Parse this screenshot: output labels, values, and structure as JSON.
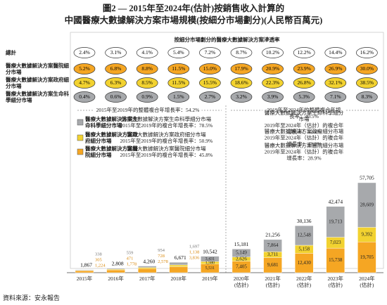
{
  "chart_data": {
    "type": "bar",
    "stacked": true,
    "title": "圖2 — 2015年至2024年(估計)按銷售收入計算的\n中國醫療大數據解決方案市場規模(按細分市場劃分)(人民幣百萬元)",
    "categories": [
      "2015年",
      "2016年",
      "2017年",
      "2018年",
      "2019年",
      "2020年\n(估計)",
      "2021年\n(估計)",
      "2022年\n(估計)",
      "2023年\n(估計)",
      "2024年\n(估計)"
    ],
    "series": [
      {
        "name": "醫療大數據解決方案醫院細分市場",
        "color": "#f5a623",
        "values": [
          1224,
          1778,
          2578,
          3836,
          5531,
          7405,
          9681,
          12430,
          15738,
          19705
        ],
        "value_labels": [
          "1,224",
          "1,778",
          "2,578",
          "3,836",
          "5,531",
          "7,405",
          "9,681",
          "12,430",
          "15,738",
          "19,705"
        ],
        "cagr_2015_2019": "醫療大數據解決方案醫院細分市場\n2015年至2019年的複合年增長率：45.8%",
        "cagr_2019_2024": "醫療大數據解決方案醫院細分市場\n2019年至2024年（估計）的複合年增長率：28.9%"
      },
      {
        "name": "醫療大數據解決方案政府細分市場",
        "color": "#f2d230",
        "values": [
          305,
          471,
          728,
          1138,
          1580,
          2626,
          3711,
          5158,
          7023,
          9392
        ],
        "value_labels": [
          "305",
          "471",
          "728",
          "1,138",
          "1,580",
          "2,626",
          "3,711",
          "5,158",
          "7,023",
          "9,392"
        ],
        "cagr_2015_2019": "醫療大數據解決方案政府細分市場\n2015年至2019年的複合年增長率：50.9%",
        "cagr_2019_2024": "醫療大數據解決方案政府細分市場\n2019年至2024年（估計）的複合年增長率：42.8%"
      },
      {
        "name": "醫療大數據解決方案生命科學細分市場",
        "color": "#a7a9ac",
        "values": [
          338,
          559,
          954,
          1697,
          3431,
          5149,
          7864,
          12548,
          19713,
          28609
        ],
        "value_labels": [
          "338",
          "559",
          "954",
          "1,697",
          "3,431",
          "5,149",
          "7,864",
          "12,548",
          "19,713",
          "28,609"
        ],
        "cagr_2015_2019": "醫療大數據解決方案生命科學細分市場\n2015年至2019年的複合年增長率：78.5%",
        "cagr_2019_2024": "醫療大數據解決方案生命科學細分市場\n2019年至2024年（估計）的複合年增長率：52.8%"
      }
    ],
    "totals": [
      1867,
      2808,
      4260,
      6671,
      10542,
      15181,
      21256,
      30136,
      42474,
      57705
    ],
    "total_labels": [
      "1,867",
      "2,808",
      "4,260",
      "6,671",
      "10,542",
      "15,181",
      "21,256",
      "30,136",
      "42,474",
      "57,705"
    ],
    "overall_cagr": [
      "2015年至2019年的整體複合年增長率：54.2%",
      "2019年至2024年的整體複合年增長率：40.5%"
    ],
    "penetration": {
      "title": "按細分市場劃分的醫療大數據解決方案滲透率",
      "rows": [
        {
          "label": "總計",
          "color": "#ffffff",
          "values": [
            2.4,
            3.1,
            4.1,
            5.4,
            7.2,
            8.7,
            10.2,
            12.2,
            14.4,
            16.2
          ],
          "value_labels": [
            "2.4%",
            "3.1%",
            "4.1%",
            "5.4%",
            "7.2%",
            "8.7%",
            "10.2%",
            "12.2%",
            "14.4%",
            "16.2%"
          ]
        },
        {
          "label": "醫療大數據解決方案醫院細分市場",
          "color": "#f5a623",
          "values": [
            5.2,
            6.8,
            8.8,
            11.5,
            15.0,
            17.9,
            20.9,
            23.9,
            26.9,
            30.0
          ],
          "value_labels": [
            "5.2%",
            "6.8%",
            "8.8%",
            "11.5%",
            "15.0%",
            "17.9%",
            "20.9%",
            "23.9%",
            "26.9%",
            "30.0%"
          ]
        },
        {
          "label": "醫療大數據解決方案政府細分市場",
          "color": "#f2d230",
          "values": [
            4.7,
            6.3,
            8.5,
            11.5,
            15.5,
            18.6,
            22.3,
            26.8,
            32.1,
            38.5
          ],
          "value_labels": [
            "4.7%",
            "6.3%",
            "8.5%",
            "11.5%",
            "15.5%",
            "18.6%",
            "22.3%",
            "26.8%",
            "32.1%",
            "38.5%"
          ]
        },
        {
          "label": "醫療大數據解決方案生命科學細分市場",
          "color": "#a7a9ac",
          "values": [
            0.4,
            0.6,
            0.9,
            1.5,
            2.7,
            3.2,
            3.9,
            5.3,
            7.1,
            8.3
          ],
          "value_labels": [
            "0.4%",
            "0.6%",
            "0.9%",
            "1.5%",
            "2.7%",
            "3.2%",
            "3.9%",
            "5.3%",
            "7.1%",
            "8.3%"
          ]
        }
      ]
    },
    "source": "資料來源：安永報告"
  }
}
